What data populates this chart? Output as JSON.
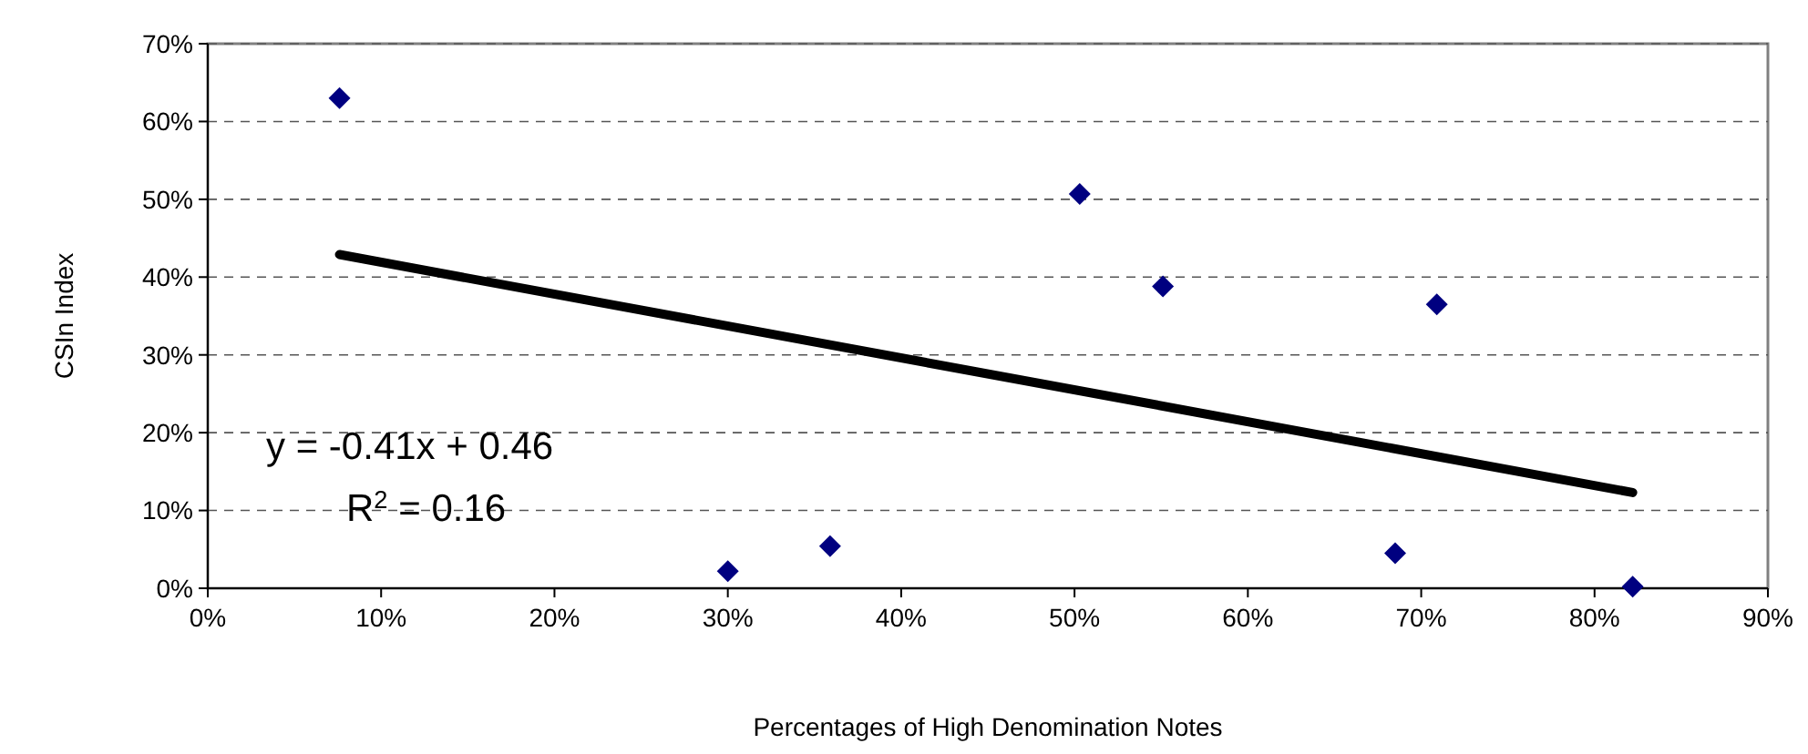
{
  "chart_data": {
    "type": "scatter",
    "xlabel": "Percentages of High Denomination Notes",
    "ylabel": "CSIn Index",
    "xlim": [
      0,
      90
    ],
    "ylim": [
      0,
      70
    ],
    "xticks": [
      {
        "value": 0,
        "label": "0%"
      },
      {
        "value": 10,
        "label": "10%"
      },
      {
        "value": 20,
        "label": "20%"
      },
      {
        "value": 30,
        "label": "30%"
      },
      {
        "value": 40,
        "label": "40%"
      },
      {
        "value": 50,
        "label": "50%"
      },
      {
        "value": 60,
        "label": "60%"
      },
      {
        "value": 70,
        "label": "70%"
      },
      {
        "value": 80,
        "label": "80%"
      },
      {
        "value": 90,
        "label": "90%"
      }
    ],
    "yticks": [
      {
        "value": 0,
        "label": "0%"
      },
      {
        "value": 10,
        "label": "10%"
      },
      {
        "value": 20,
        "label": "20%"
      },
      {
        "value": 30,
        "label": "30%"
      },
      {
        "value": 40,
        "label": "40%"
      },
      {
        "value": 50,
        "label": "50%"
      },
      {
        "value": 60,
        "label": "60%"
      },
      {
        "value": 70,
        "label": "70%"
      }
    ],
    "grid": "y",
    "series": [
      {
        "color": "#000080",
        "marker": "diamond",
        "x": [
          7.6,
          30.0,
          35.9,
          50.3,
          55.1,
          68.5,
          70.9,
          82.2
        ],
        "values": [
          63.0,
          2.2,
          5.4,
          50.7,
          38.8,
          4.5,
          36.5,
          0.2
        ]
      },
      {
        "type": "line",
        "color": "#000000",
        "marker": "none",
        "line_style": "solid",
        "x": [
          7.6,
          82.2
        ],
        "values": [
          42.9,
          12.3
        ]
      }
    ],
    "annotations": [
      "y = -0.41x + 0.46",
      "R$^{2}$ = 0.16"
    ]
  }
}
